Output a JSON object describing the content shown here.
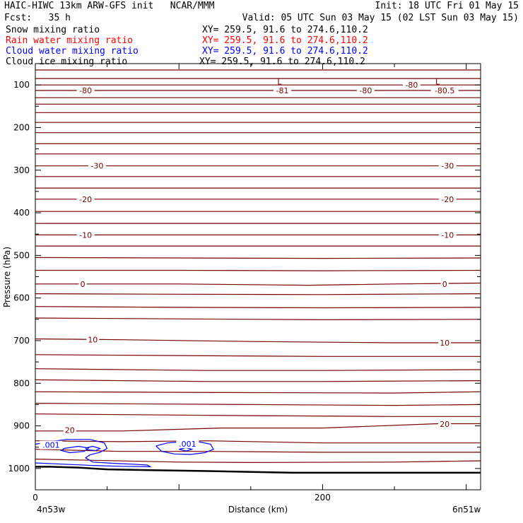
{
  "header": {
    "title": "HAIC-HIWC 13km ARW-GFS init   NCAR/MMM",
    "init": "Init: 18 UTC Fri 01 May 15",
    "fcst": "Fcst:   35 h",
    "valid": "Valid: 05 UTC Sun 03 May 15 (02 LST Sun 03 May 15)"
  },
  "chart_data": {
    "type": "line",
    "title": "",
    "xlabel": "Distance (km)",
    "ylabel": "Pressure (hPa)",
    "xlim": [
      0,
      310
    ],
    "ylim": [
      1050,
      50
    ],
    "x_ticks": [
      0,
      200
    ],
    "y_ticks": [
      100,
      200,
      300,
      400,
      500,
      600,
      700,
      800,
      900,
      1000
    ],
    "x_endpoint_labels": [
      "4n53w",
      "6n51w"
    ],
    "legend": [
      {
        "name": "Snow mixing ratio",
        "color": "#000000",
        "xy": "XY= 259.5, 91.6 to 274.6,110.2"
      },
      {
        "name": "Rain water mixing ratio",
        "color": "#ff0000",
        "xy": "XY= 259.5, 91.6 to 274.6,110.2"
      },
      {
        "name": "Cloud water mixing ratio",
        "color": "#0000ff",
        "xy": "XY= 259.5, 91.6 to 274.6,110.2"
      },
      {
        "name": "Cloud ice mixing ratio",
        "color": "#000000",
        "xy": "XY= 259.5, 91.6 to 274.6,110.2"
      }
    ],
    "isotherm_color": "#7a0000",
    "cloud_color": "#0000ff",
    "isotherms": [
      {
        "x": [
          0,
          310
        ],
        "p": [
          65,
          65
        ]
      },
      {
        "x": [
          0,
          310
        ],
        "p": [
          85,
          85
        ]
      },
      {
        "x": [
          0,
          310
        ],
        "p": [
          100,
          100
        ]
      },
      {
        "x": [
          0,
          310
        ],
        "p": [
          113,
          113
        ]
      },
      {
        "x": [
          0,
          310
        ],
        "p": [
          130,
          130
        ]
      },
      {
        "x": [
          0,
          310
        ],
        "p": [
          145,
          145
        ]
      },
      {
        "x": [
          0,
          310
        ],
        "p": [
          165,
          165
        ]
      },
      {
        "x": [
          0,
          310
        ],
        "p": [
          188,
          188
        ]
      },
      {
        "x": [
          0,
          310
        ],
        "p": [
          212,
          212
        ]
      },
      {
        "x": [
          0,
          310
        ],
        "p": [
          238,
          238
        ]
      },
      {
        "x": [
          0,
          310
        ],
        "p": [
          262,
          262
        ]
      },
      {
        "x": [
          0,
          310
        ],
        "p": [
          290,
          290
        ]
      },
      {
        "x": [
          0,
          310
        ],
        "p": [
          315,
          315
        ]
      },
      {
        "x": [
          0,
          310
        ],
        "p": [
          342,
          342
        ]
      },
      {
        "x": [
          0,
          310
        ],
        "p": [
          368,
          368
        ]
      },
      {
        "x": [
          0,
          310
        ],
        "p": [
          397,
          397
        ]
      },
      {
        "x": [
          0,
          310
        ],
        "p": [
          425,
          425
        ]
      },
      {
        "x": [
          0,
          310
        ],
        "p": [
          452,
          452
        ]
      },
      {
        "x": [
          0,
          310
        ],
        "p": [
          478,
          478
        ]
      },
      {
        "x": [
          0,
          100,
          200,
          310
        ],
        "p": [
          505,
          506,
          507,
          506
        ]
      },
      {
        "x": [
          0,
          100,
          200,
          310
        ],
        "p": [
          535,
          535,
          536,
          535
        ]
      },
      {
        "x": [
          0,
          100,
          190,
          250,
          310
        ],
        "p": [
          567,
          567,
          570,
          567,
          565
        ]
      },
      {
        "x": [
          0,
          80,
          200,
          310
        ],
        "p": [
          590,
          591,
          592,
          590
        ]
      },
      {
        "x": [
          0,
          100,
          200,
          310
        ],
        "p": [
          620,
          622,
          623,
          622
        ]
      },
      {
        "x": [
          0,
          100,
          200,
          310
        ],
        "p": [
          647,
          649,
          651,
          650
        ]
      },
      {
        "x": [
          0,
          60,
          150,
          250,
          310
        ],
        "p": [
          696,
          698,
          702,
          705,
          705
        ]
      },
      {
        "x": [
          0,
          100,
          200,
          310
        ],
        "p": [
          733,
          735,
          737,
          737
        ]
      },
      {
        "x": [
          0,
          120,
          200,
          310
        ],
        "p": [
          766,
          770,
          770,
          768
        ]
      },
      {
        "x": [
          0,
          120,
          200,
          310
        ],
        "p": [
          792,
          796,
          796,
          794
        ]
      },
      {
        "x": [
          0,
          150,
          250,
          310
        ],
        "p": [
          820,
          822,
          823,
          820
        ]
      },
      {
        "x": [
          0,
          150,
          250,
          310
        ],
        "p": [
          847,
          850,
          852,
          850
        ]
      },
      {
        "x": [
          0,
          150,
          250,
          310
        ],
        "p": [
          872,
          876,
          878,
          878
        ]
      },
      {
        "x": [
          0,
          60,
          130,
          200,
          280,
          310
        ],
        "p": [
          912,
          912,
          905,
          905,
          895,
          895
        ]
      },
      {
        "x": [
          0,
          60,
          120,
          200,
          310
        ],
        "p": [
          935,
          937,
          935,
          940,
          940
        ]
      },
      {
        "x": [
          0,
          60,
          120,
          200,
          310
        ],
        "p": [
          955,
          960,
          960,
          962,
          962
        ]
      },
      {
        "x": [
          0,
          100,
          150,
          250,
          310
        ],
        "p": [
          978,
          985,
          986,
          985,
          982
        ]
      }
    ],
    "isotherm_labels": [
      {
        "text": "-80",
        "x": 35,
        "p": 113
      },
      {
        "text": "-81",
        "x": 172,
        "p": 113
      },
      {
        "text": "-80",
        "x": 230,
        "p": 113
      },
      {
        "text": "-80",
        "x": 262,
        "p": 100
      },
      {
        "text": "-80.5",
        "x": 285,
        "p": 113
      },
      {
        "text": "-30",
        "x": 43,
        "p": 290
      },
      {
        "text": "-30",
        "x": 287,
        "p": 290
      },
      {
        "text": "-20",
        "x": 35,
        "p": 368
      },
      {
        "text": "-20",
        "x": 287,
        "p": 368
      },
      {
        "text": "-10",
        "x": 35,
        "p": 452
      },
      {
        "text": "-10",
        "x": 287,
        "p": 452
      },
      {
        "text": "0",
        "x": 33,
        "p": 567
      },
      {
        "text": "0",
        "x": 285,
        "p": 567
      },
      {
        "text": "10",
        "x": 40,
        "p": 698
      },
      {
        "text": "10",
        "x": 285,
        "p": 705
      },
      {
        "text": "20",
        "x": 24,
        "p": 910
      },
      {
        "text": "20",
        "x": 285,
        "p": 896
      }
    ],
    "lows": [
      {
        "text": "L",
        "x": 170,
        "p": 92
      },
      {
        "text": "L",
        "x": 280,
        "p": 92
      }
    ],
    "cloud_water_contours": [
      {
        "level": ".001",
        "x": [
          0,
          10,
          22,
          38,
          48,
          50,
          45,
          38,
          35,
          40,
          55,
          68,
          78,
          80,
          60,
          40,
          20,
          0
        ],
        "p": [
          943,
          937,
          932,
          932,
          940,
          953,
          962,
          968,
          975,
          985,
          988,
          990,
          992,
          996,
          995,
          993,
          990,
          987
        ]
      },
      {
        "level": ".001",
        "x": [
          20,
          30,
          37,
          34,
          24,
          18,
          20
        ],
        "p": [
          953,
          948,
          952,
          960,
          963,
          958,
          953
        ]
      },
      {
        "level": ".001",
        "x": [
          35,
          40,
          45,
          42,
          36,
          35
        ],
        "p": [
          952,
          948,
          953,
          958,
          956,
          952
        ]
      },
      {
        "level": ".001",
        "x": [
          84,
          92,
          103,
          115,
          122,
          124,
          118,
          108,
          97,
          88,
          84
        ],
        "p": [
          947,
          940,
          937,
          938,
          943,
          955,
          963,
          967,
          966,
          960,
          947
        ]
      },
      {
        "level": ".001",
        "x": [
          100,
          105,
          109,
          105,
          100
        ],
        "p": [
          955,
          951,
          955,
          959,
          955
        ]
      }
    ],
    "cloud_water_labels": [
      {
        "text": ".001",
        "x": 11,
        "p": 945
      },
      {
        "text": ".001",
        "x": 106,
        "p": 942
      }
    ],
    "terrain": {
      "x": [
        0,
        10,
        30,
        50,
        80,
        120,
        180,
        250,
        310
      ],
      "p": [
        996,
        996,
        998,
        1002,
        1004,
        1006,
        1010,
        1010,
        1010
      ]
    }
  }
}
